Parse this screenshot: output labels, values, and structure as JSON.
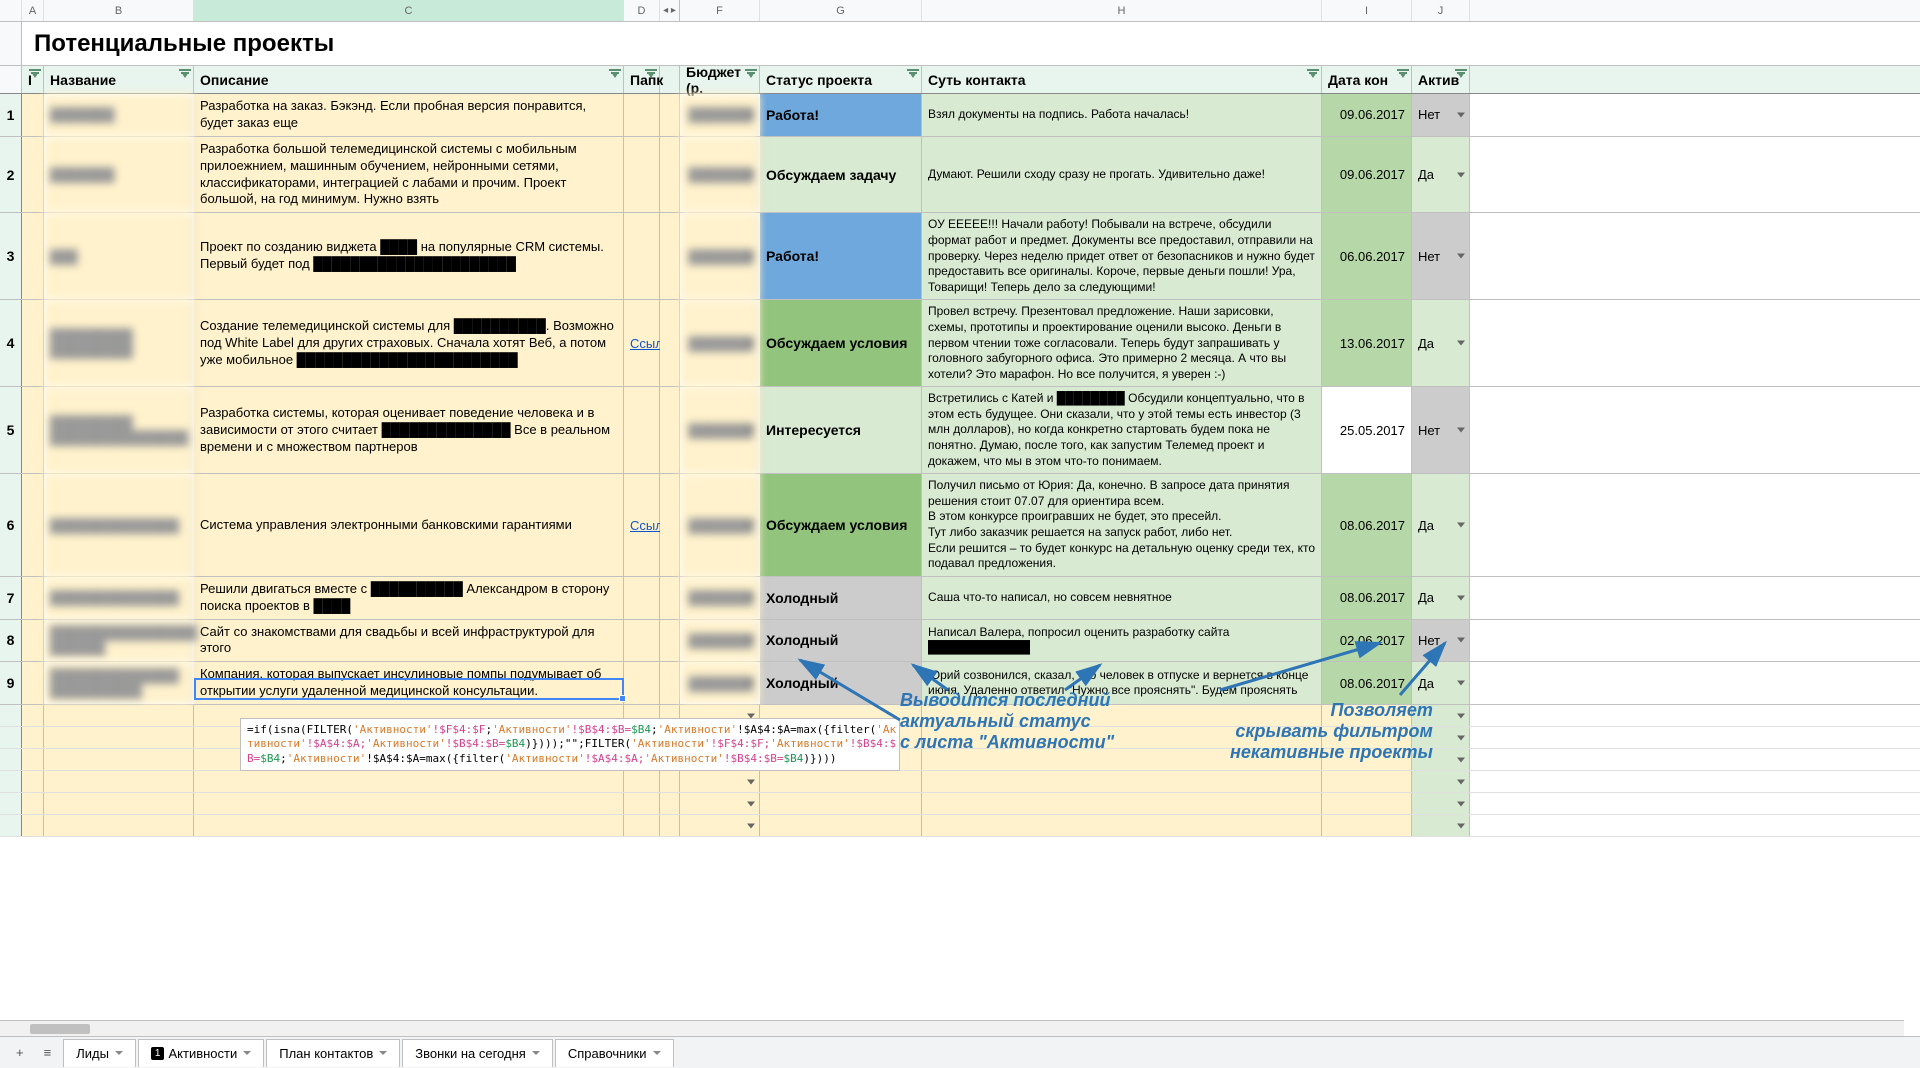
{
  "title": "Потенциальные проекты",
  "columns": {
    "letters": [
      "A",
      "B",
      "C",
      "D",
      "",
      "F",
      "G",
      "H",
      "I",
      "J"
    ],
    "headers": [
      "I",
      "Название",
      "Описание",
      "Папк",
      "Бюджет (р.",
      "Статус проекта",
      "Суть контакта",
      "Дата кон",
      "Актив"
    ]
  },
  "rows": [
    {
      "num": "1",
      "name": "███████",
      "desc": "Разработка на заказ. Бэкэнд. Если пробная версия понравится, будет заказ еще",
      "folder": "",
      "budget": "███████",
      "status": "Работа!",
      "status_bg": "bg-blue",
      "contact": "Взял документы на подпись. Работа началась!",
      "contact_bg": "bg-lightgreen",
      "date": "09.06.2017",
      "date_bg": "bg-dategreen",
      "active": "Нет",
      "active_bg": "bg-grey"
    },
    {
      "num": "2",
      "name": "███████",
      "desc": "Разработка большой телемедицинской системы с мобильным прилоежнием, машинным обучением, нейронными сетями, классификаторами, интеграцией с лабами и прочим. Проект большой, на год минимум. Нужно взять",
      "folder": "",
      "budget": "███████",
      "status": "Обсуждаем задачу",
      "status_bg": "bg-lightgreen",
      "contact": "Думают. Решили сходу сразу не прогать. Удивительно даже!",
      "contact_bg": "bg-lightgreen",
      "date": "09.06.2017",
      "date_bg": "bg-dategreen",
      "active": "Да",
      "active_bg": "bg-lightgreen"
    },
    {
      "num": "3",
      "name": "███",
      "desc": "Проект по созданию виджета ████ на популярные CRM системы. Первый будет под ██████████████████████",
      "folder": "",
      "budget": "███████",
      "status": "Работа!",
      "status_bg": "bg-blue",
      "contact": "ОУ ЕЕЕЕЕ!!! Начали работу! Побывали на встрече, обсудили формат работ и предмет. Документы все предоставил, отправили на проверку. Через неделю придет ответ от безопасников и нужно будет предоставить все оригиналы. Короче, первые деньги пошли! Ура, Товарищи! Теперь дело за следующими!",
      "contact_bg": "bg-lightgreen",
      "date": "06.06.2017",
      "date_bg": "bg-dategreen",
      "active": "Нет",
      "active_bg": "bg-grey"
    },
    {
      "num": "4",
      "name": "█████████\n█████████",
      "desc": "Создание телемедицинской системы для ██████████. Возможно под White Label для других страховых. Сначала хотят Веб, а потом уже мобильное ████████████████████████",
      "folder": "Ссылка",
      "budget": "███████",
      "status": "Обсуждаем условия",
      "status_bg": "bg-green",
      "contact": "Провел встречу. Презентовал предложение. Наши зарисовки, схемы, прототипы и проектирование оценили высоко. Деньги в первом чтении тоже согласовали. Теперь будут запрашивать у головного забугорного офиса. Это примерно 2 месяца. А что вы хотели? Это марафон. Но все получится, я уверен :-)",
      "contact_bg": "bg-lightgreen",
      "date": "13.06.2017",
      "date_bg": "bg-dategreen",
      "active": "Да",
      "active_bg": "bg-lightgreen"
    },
    {
      "num": "5",
      "name": "█████████\n███████████████",
      "desc": "Разработка системы, которая оценивает поведение человека и в зависимости от этого считает ██████████████ Все в реальном времени и с множеством партнеров",
      "folder": "",
      "budget": "███████",
      "status": "Интересуется",
      "status_bg": "bg-lightgreen",
      "contact": "Встретились с Катей и ████████ Обсудили концептуально, что в этом есть будущее. Они сказали, что у этой темы есть инвестор (3 млн долларов), но когда конкретно стартовать будем пока не понятно. Думаю, после того, как запустим Телемед проект и докажем, что мы в этом что-то понимаем.",
      "contact_bg": "bg-lightgreen",
      "date": "25.05.2017",
      "date_bg": "bg-white",
      "active": "Нет",
      "active_bg": "bg-grey"
    },
    {
      "num": "6",
      "name": "██████████████",
      "desc": "Система управления электронными банковскими гарантиями",
      "folder": "Ссылка",
      "budget": "███████",
      "status": "Обсуждаем условия",
      "status_bg": "bg-green",
      "contact": "Получил письмо от Юрия: Да, конечно. В запросе дата принятия решения стоит 07.07 для ориентира всем.\nВ этом конкурсе проигравших не будет, это пресейл.\nТут либо заказчик решается на запуск работ, либо нет.\nЕсли решится – то будет конкурс на детальную оценку среди тех, кто подавал предложения.",
      "contact_bg": "bg-lightgreen",
      "date": "08.06.2017",
      "date_bg": "bg-dategreen",
      "active": "Да",
      "active_bg": "bg-lightgreen"
    },
    {
      "num": "7",
      "name": "██████████████",
      "desc": "Решили двигаться вместе с ██████████ Александром в сторону поиска проектов в ████",
      "folder": "",
      "budget": "███████",
      "status": "Холодный",
      "status_bg": "bg-grey",
      "contact": "Саша что-то написал, но совсем невнятное",
      "contact_bg": "bg-lightgreen",
      "date": "08.06.2017",
      "date_bg": "bg-dategreen",
      "active": "Да",
      "active_bg": "bg-lightgreen"
    },
    {
      "num": "8",
      "name": "████████████████\n██████",
      "desc": "Сайт со знакомствами для свадьбы и всей инфраструктурой для этого",
      "folder": "",
      "budget": "███████",
      "status": "Холодный",
      "status_bg": "bg-grey",
      "contact": "Написал Валера, попросил оценить разработку сайта ████████████",
      "contact_bg": "bg-lightgreen",
      "date": "02.06.2017",
      "date_bg": "bg-dategreen",
      "active": "Нет",
      "active_bg": "bg-grey"
    },
    {
      "num": "9",
      "name": "██████████████\n██████████",
      "desc": "Компания, которая выпускает инсулиновые помпы подумывает об открытии услуги удаленной медицинской консультации.",
      "folder": "",
      "budget": "███████",
      "status": "Холодный",
      "status_bg": "bg-grey",
      "contact": "Юрий созвонился, сказал, что человек в отпуске и вернется в конце июня. Удаленно ответил \"Нужно все прояснять\". Будем прояснять",
      "contact_bg": "bg-lightgreen",
      "date": "08.06.2017",
      "date_bg": "bg-dategreen",
      "active": "Да",
      "active_bg": "bg-lightgreen"
    }
  ],
  "formula": {
    "parts": [
      {
        "t": "=if(isna(FILTER(",
        "c": "fn"
      },
      {
        "t": "'Активности'",
        "c": "str"
      },
      {
        "t": "!$F$4:$F",
        "c": "ref"
      },
      {
        "t": ";",
        "c": "fn"
      },
      {
        "t": "'Активности'",
        "c": "str"
      },
      {
        "t": "!$B$4:$B=",
        "c": "ref"
      },
      {
        "t": "$B4",
        "c": "ref2"
      },
      {
        "t": ";",
        "c": "fn"
      },
      {
        "t": "'Активности'",
        "c": "str"
      },
      {
        "t": "!$A$4:$A=max({filter(",
        "c": "fn"
      },
      {
        "t": "'Ак\nтивности'",
        "c": "str"
      },
      {
        "t": "!$A$4:$A;",
        "c": "ref"
      },
      {
        "t": "'Активности'",
        "c": "str"
      },
      {
        "t": "!$B$4:$B=",
        "c": "ref"
      },
      {
        "t": "$B4",
        "c": "ref2"
      },
      {
        "t": ")})));\"\";FILTER(",
        "c": "fn"
      },
      {
        "t": "'Активности'",
        "c": "str"
      },
      {
        "t": "!$F$4:$F;",
        "c": "ref"
      },
      {
        "t": "'Активности'",
        "c": "str"
      },
      {
        "t": "!$B$4:$\nB=",
        "c": "ref"
      },
      {
        "t": "$B4",
        "c": "ref2"
      },
      {
        "t": ";",
        "c": "fn"
      },
      {
        "t": "'Активности'",
        "c": "str"
      },
      {
        "t": "!$A$4:$A=max({filter(",
        "c": "fn"
      },
      {
        "t": "'Активности'",
        "c": "str"
      },
      {
        "t": "!$A$4:$A;",
        "c": "ref"
      },
      {
        "t": "'Активности'",
        "c": "str"
      },
      {
        "t": "!$B$4:$B=",
        "c": "ref"
      },
      {
        "t": "$B4",
        "c": "ref2"
      },
      {
        "t": ")})))",
        "c": "fn"
      }
    ]
  },
  "annotations": {
    "a1": "Выводится последний\nактуальный статус\nс листа \"Активности\"",
    "a2": "Позволяет\nскрывать фильтром\nнекативные проекты"
  },
  "tabs": [
    "Лиды",
    "Активности",
    "План контактов",
    "Звонки на сегодня",
    "Справочники"
  ],
  "badge": "1"
}
